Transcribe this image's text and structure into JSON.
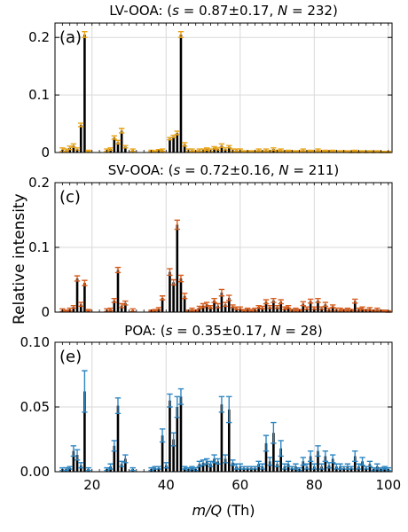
{
  "figure": {
    "ylabel": "Relative intensity",
    "xlabel_var": "m/Q",
    "xlabel_unit": " (Th)"
  },
  "chart_data": [
    {
      "type": "bar",
      "panel_label": "(a)",
      "title": {
        "prefix": "LV-OOA: (",
        "s_var": "s",
        "s_text": " = 0.87±0.17,  ",
        "n_var": "N",
        "n_text": " = 232)"
      },
      "color": "#e8a317",
      "xlim": [
        10,
        101
      ],
      "ylim": [
        0,
        0.225
      ],
      "yticks": [
        0,
        0.1,
        0.2
      ],
      "ytick_labels": [
        "0",
        "0.1",
        "0.2"
      ],
      "xticks": [
        20,
        40,
        60,
        80,
        100
      ],
      "xtick_labels": [
        "20",
        "40",
        "60",
        "80",
        "100"
      ],
      "grid": true,
      "points": [
        [
          12,
          0.005,
          0.003
        ],
        [
          13,
          0.004,
          0.002
        ],
        [
          14,
          0.008,
          0.003
        ],
        [
          15,
          0.012,
          0.003
        ],
        [
          16,
          0.006,
          0.002
        ],
        [
          17,
          0.048,
          0.003
        ],
        [
          18,
          0.205,
          0.005
        ],
        [
          19,
          0.003,
          0.001
        ],
        [
          24,
          0.004,
          0.002
        ],
        [
          25,
          0.006,
          0.002
        ],
        [
          26,
          0.026,
          0.003
        ],
        [
          27,
          0.018,
          0.003
        ],
        [
          28,
          0.038,
          0.004
        ],
        [
          29,
          0.01,
          0.002
        ],
        [
          31,
          0.004,
          0.002
        ],
        [
          36,
          0.003,
          0.001
        ],
        [
          37,
          0.002,
          0.001
        ],
        [
          38,
          0.004,
          0.001
        ],
        [
          39,
          0.004,
          0.002
        ],
        [
          41,
          0.024,
          0.002
        ],
        [
          42,
          0.028,
          0.002
        ],
        [
          43,
          0.034,
          0.003
        ],
        [
          44,
          0.205,
          0.005
        ],
        [
          45,
          0.014,
          0.003
        ],
        [
          46,
          0.004,
          0.002
        ],
        [
          47,
          0.004,
          0.002
        ],
        [
          48,
          0.002,
          0.001
        ],
        [
          49,
          0.004,
          0.002
        ],
        [
          50,
          0.004,
          0.002
        ],
        [
          51,
          0.006,
          0.002
        ],
        [
          52,
          0.004,
          0.002
        ],
        [
          53,
          0.008,
          0.002
        ],
        [
          54,
          0.006,
          0.002
        ],
        [
          55,
          0.012,
          0.003
        ],
        [
          56,
          0.006,
          0.002
        ],
        [
          57,
          0.01,
          0.002
        ],
        [
          58,
          0.004,
          0.002
        ],
        [
          59,
          0.004,
          0.002
        ],
        [
          60,
          0.004,
          0.002
        ],
        [
          61,
          0.002,
          0.001
        ],
        [
          62,
          0.002,
          0.001
        ],
        [
          63,
          0.002,
          0.001
        ],
        [
          64,
          0.002,
          0.001
        ],
        [
          65,
          0.004,
          0.002
        ],
        [
          66,
          0.002,
          0.001
        ],
        [
          67,
          0.004,
          0.002
        ],
        [
          68,
          0.002,
          0.001
        ],
        [
          69,
          0.006,
          0.002
        ],
        [
          70,
          0.003,
          0.001
        ],
        [
          71,
          0.004,
          0.002
        ],
        [
          72,
          0.002,
          0.001
        ],
        [
          73,
          0.003,
          0.001
        ],
        [
          74,
          0.002,
          0.001
        ],
        [
          75,
          0.002,
          0.001
        ],
        [
          76,
          0.002,
          0.001
        ],
        [
          77,
          0.004,
          0.002
        ],
        [
          78,
          0.002,
          0.001
        ],
        [
          79,
          0.003,
          0.001
        ],
        [
          80,
          0.002,
          0.001
        ],
        [
          81,
          0.004,
          0.002
        ],
        [
          82,
          0.002,
          0.001
        ],
        [
          83,
          0.003,
          0.001
        ],
        [
          84,
          0.002,
          0.001
        ],
        [
          85,
          0.003,
          0.001
        ],
        [
          86,
          0.002,
          0.001
        ],
        [
          87,
          0.002,
          0.001
        ],
        [
          88,
          0.002,
          0.001
        ],
        [
          89,
          0.002,
          0.001
        ],
        [
          90,
          0.001,
          0.001
        ],
        [
          91,
          0.003,
          0.001
        ],
        [
          92,
          0.001,
          0.001
        ],
        [
          93,
          0.002,
          0.001
        ],
        [
          94,
          0.001,
          0.001
        ],
        [
          95,
          0.002,
          0.001
        ],
        [
          96,
          0.001,
          0.001
        ],
        [
          97,
          0.002,
          0.001
        ],
        [
          98,
          0.001,
          0.001
        ],
        [
          99,
          0.001,
          0.001
        ],
        [
          100,
          0.001,
          0.001
        ]
      ]
    },
    {
      "type": "bar",
      "panel_label": "(c)",
      "title": {
        "prefix": "SV-OOA: (",
        "s_var": "s",
        "s_text": " = 0.72±0.16,  ",
        "n_var": "N",
        "n_text": " = 211)"
      },
      "color": "#d55d1e",
      "xlim": [
        10,
        101
      ],
      "ylim": [
        0,
        0.2
      ],
      "yticks": [
        0,
        0.1,
        0.2
      ],
      "ytick_labels": [
        "0",
        "0.1",
        "0.2"
      ],
      "xticks": [
        20,
        40,
        60,
        80,
        100
      ],
      "xtick_labels": [
        "20",
        "40",
        "60",
        "80",
        "100"
      ],
      "grid": true,
      "points": [
        [
          12,
          0.003,
          0.002
        ],
        [
          13,
          0.002,
          0.001
        ],
        [
          14,
          0.004,
          0.002
        ],
        [
          15,
          0.008,
          0.002
        ],
        [
          16,
          0.052,
          0.004
        ],
        [
          17,
          0.012,
          0.003
        ],
        [
          18,
          0.045,
          0.004
        ],
        [
          19,
          0.003,
          0.001
        ],
        [
          24,
          0.003,
          0.002
        ],
        [
          25,
          0.004,
          0.002
        ],
        [
          26,
          0.018,
          0.003
        ],
        [
          27,
          0.065,
          0.004
        ],
        [
          28,
          0.01,
          0.003
        ],
        [
          29,
          0.014,
          0.003
        ],
        [
          31,
          0.003,
          0.002
        ],
        [
          36,
          0.002,
          0.001
        ],
        [
          37,
          0.003,
          0.001
        ],
        [
          38,
          0.005,
          0.002
        ],
        [
          39,
          0.022,
          0.003
        ],
        [
          41,
          0.062,
          0.005
        ],
        [
          42,
          0.046,
          0.004
        ],
        [
          43,
          0.135,
          0.007
        ],
        [
          44,
          0.052,
          0.005
        ],
        [
          45,
          0.025,
          0.004
        ],
        [
          46,
          0.002,
          0.001
        ],
        [
          47,
          0.004,
          0.002
        ],
        [
          48,
          0.002,
          0.001
        ],
        [
          49,
          0.007,
          0.002
        ],
        [
          50,
          0.01,
          0.003
        ],
        [
          51,
          0.012,
          0.003
        ],
        [
          52,
          0.008,
          0.002
        ],
        [
          53,
          0.018,
          0.003
        ],
        [
          54,
          0.01,
          0.003
        ],
        [
          55,
          0.03,
          0.005
        ],
        [
          56,
          0.012,
          0.003
        ],
        [
          57,
          0.022,
          0.004
        ],
        [
          58,
          0.009,
          0.002
        ],
        [
          59,
          0.006,
          0.002
        ],
        [
          60,
          0.006,
          0.002
        ],
        [
          61,
          0.003,
          0.001
        ],
        [
          62,
          0.004,
          0.002
        ],
        [
          63,
          0.003,
          0.001
        ],
        [
          64,
          0.004,
          0.002
        ],
        [
          65,
          0.008,
          0.002
        ],
        [
          66,
          0.007,
          0.002
        ],
        [
          67,
          0.016,
          0.003
        ],
        [
          68,
          0.008,
          0.002
        ],
        [
          69,
          0.018,
          0.003
        ],
        [
          70,
          0.008,
          0.002
        ],
        [
          71,
          0.016,
          0.003
        ],
        [
          72,
          0.006,
          0.002
        ],
        [
          73,
          0.008,
          0.002
        ],
        [
          74,
          0.003,
          0.001
        ],
        [
          75,
          0.004,
          0.002
        ],
        [
          76,
          0.003,
          0.001
        ],
        [
          77,
          0.013,
          0.003
        ],
        [
          78,
          0.006,
          0.002
        ],
        [
          79,
          0.017,
          0.003
        ],
        [
          80,
          0.006,
          0.002
        ],
        [
          81,
          0.018,
          0.003
        ],
        [
          82,
          0.006,
          0.002
        ],
        [
          83,
          0.012,
          0.003
        ],
        [
          84,
          0.004,
          0.002
        ],
        [
          85,
          0.009,
          0.002
        ],
        [
          86,
          0.004,
          0.002
        ],
        [
          87,
          0.004,
          0.002
        ],
        [
          88,
          0.003,
          0.001
        ],
        [
          89,
          0.004,
          0.002
        ],
        [
          90,
          0.003,
          0.001
        ],
        [
          91,
          0.017,
          0.003
        ],
        [
          92,
          0.004,
          0.002
        ],
        [
          93,
          0.006,
          0.002
        ],
        [
          94,
          0.003,
          0.001
        ],
        [
          95,
          0.005,
          0.002
        ],
        [
          96,
          0.002,
          0.001
        ],
        [
          97,
          0.004,
          0.002
        ],
        [
          98,
          0.002,
          0.001
        ],
        [
          99,
          0.002,
          0.001
        ],
        [
          100,
          0.001,
          0.001
        ]
      ]
    },
    {
      "type": "bar",
      "panel_label": "(e)",
      "title": {
        "prefix": "POA: (",
        "s_var": "s",
        "s_text": " = 0.35±0.17,  ",
        "n_var": "N",
        "n_text": " = 28)"
      },
      "color": "#2e86c1",
      "xlim": [
        10,
        101
      ],
      "ylim": [
        0,
        0.1
      ],
      "yticks": [
        0,
        0.05,
        0.1
      ],
      "ytick_labels": [
        "0.00",
        "0.05",
        "0.10"
      ],
      "xticks": [
        20,
        40,
        60,
        80,
        100
      ],
      "xtick_labels": [
        "20",
        "40",
        "60",
        "80",
        "100"
      ],
      "grid": true,
      "points": [
        [
          12,
          0.002,
          0.001
        ],
        [
          13,
          0.002,
          0.001
        ],
        [
          14,
          0.003,
          0.001
        ],
        [
          15,
          0.016,
          0.004
        ],
        [
          16,
          0.013,
          0.004
        ],
        [
          17,
          0.005,
          0.002
        ],
        [
          18,
          0.062,
          0.016
        ],
        [
          19,
          0.002,
          0.001
        ],
        [
          24,
          0.002,
          0.001
        ],
        [
          25,
          0.004,
          0.002
        ],
        [
          26,
          0.02,
          0.004
        ],
        [
          27,
          0.051,
          0.006
        ],
        [
          28,
          0.006,
          0.002
        ],
        [
          29,
          0.01,
          0.003
        ],
        [
          31,
          0.002,
          0.001
        ],
        [
          36,
          0.002,
          0.001
        ],
        [
          37,
          0.003,
          0.001
        ],
        [
          38,
          0.003,
          0.001
        ],
        [
          39,
          0.028,
          0.005
        ],
        [
          40,
          0.005,
          0.002
        ],
        [
          41,
          0.055,
          0.005
        ],
        [
          42,
          0.025,
          0.005
        ],
        [
          43,
          0.05,
          0.008
        ],
        [
          44,
          0.058,
          0.006
        ],
        [
          45,
          0.003,
          0.001
        ],
        [
          46,
          0.002,
          0.001
        ],
        [
          47,
          0.003,
          0.001
        ],
        [
          48,
          0.002,
          0.001
        ],
        [
          49,
          0.006,
          0.002
        ],
        [
          50,
          0.007,
          0.002
        ],
        [
          51,
          0.008,
          0.002
        ],
        [
          52,
          0.006,
          0.002
        ],
        [
          53,
          0.01,
          0.003
        ],
        [
          54,
          0.008,
          0.002
        ],
        [
          55,
          0.052,
          0.006
        ],
        [
          56,
          0.01,
          0.003
        ],
        [
          57,
          0.048,
          0.01
        ],
        [
          58,
          0.007,
          0.002
        ],
        [
          59,
          0.004,
          0.002
        ],
        [
          60,
          0.004,
          0.002
        ],
        [
          61,
          0.003,
          0.001
        ],
        [
          62,
          0.003,
          0.001
        ],
        [
          63,
          0.003,
          0.001
        ],
        [
          64,
          0.003,
          0.001
        ],
        [
          65,
          0.006,
          0.002
        ],
        [
          66,
          0.004,
          0.002
        ],
        [
          67,
          0.022,
          0.006
        ],
        [
          68,
          0.008,
          0.003
        ],
        [
          69,
          0.03,
          0.008
        ],
        [
          70,
          0.006,
          0.002
        ],
        [
          71,
          0.018,
          0.006
        ],
        [
          72,
          0.004,
          0.002
        ],
        [
          73,
          0.006,
          0.002
        ],
        [
          74,
          0.003,
          0.001
        ],
        [
          75,
          0.004,
          0.002
        ],
        [
          76,
          0.002,
          0.001
        ],
        [
          77,
          0.008,
          0.003
        ],
        [
          78,
          0.004,
          0.002
        ],
        [
          79,
          0.012,
          0.004
        ],
        [
          80,
          0.004,
          0.002
        ],
        [
          81,
          0.016,
          0.004
        ],
        [
          82,
          0.004,
          0.002
        ],
        [
          83,
          0.012,
          0.004
        ],
        [
          84,
          0.005,
          0.002
        ],
        [
          85,
          0.01,
          0.003
        ],
        [
          86,
          0.004,
          0.002
        ],
        [
          87,
          0.004,
          0.002
        ],
        [
          88,
          0.003,
          0.001
        ],
        [
          89,
          0.004,
          0.002
        ],
        [
          90,
          0.003,
          0.001
        ],
        [
          91,
          0.012,
          0.004
        ],
        [
          92,
          0.004,
          0.002
        ],
        [
          93,
          0.008,
          0.003
        ],
        [
          94,
          0.003,
          0.001
        ],
        [
          95,
          0.006,
          0.002
        ],
        [
          96,
          0.002,
          0.001
        ],
        [
          97,
          0.004,
          0.002
        ],
        [
          98,
          0.002,
          0.001
        ],
        [
          99,
          0.003,
          0.001
        ],
        [
          100,
          0.002,
          0.001
        ]
      ]
    }
  ]
}
